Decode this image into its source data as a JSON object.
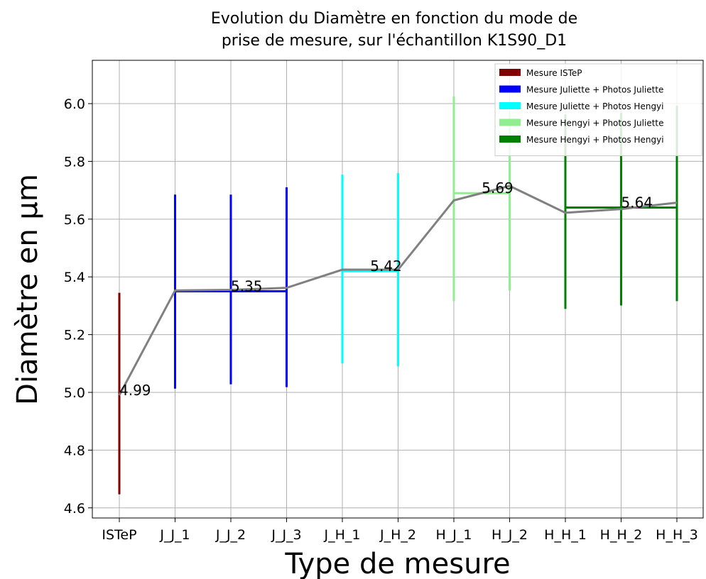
{
  "chart_data": {
    "type": "errorbar",
    "title": [
      "Evolution du Diamètre en fonction du mode de",
      "prise de mesure, sur l'échantillon K1S90_D1"
    ],
    "x_label": "Type de mesure",
    "y_label": "Diamètre en µm",
    "categories": [
      "ISTeP",
      "J_J_1",
      "J_J_2",
      "J_J_3",
      "J_H_1",
      "J_H_2",
      "H_J_1",
      "H_J_2",
      "H_H_1",
      "H_H_2",
      "H_H_3"
    ],
    "mean_line": {
      "color": "#808080",
      "values": [
        4.99,
        5.353,
        5.355,
        5.362,
        5.425,
        5.425,
        5.665,
        5.715,
        5.622,
        5.635,
        5.657
      ]
    },
    "series": [
      {
        "name": "Mesure ISTeP",
        "color": "#800000",
        "members": [
          0
        ],
        "lower": [
          4.647
        ],
        "upper": [
          5.345
        ],
        "mean": 4.99
      },
      {
        "name": "Mesure Juliette + Photos Juliette",
        "color": "#0000ff",
        "members": [
          1,
          2,
          3
        ],
        "lower": [
          5.013,
          5.028,
          5.018
        ],
        "upper": [
          5.685,
          5.685,
          5.71
        ],
        "mean": 5.35
      },
      {
        "name": "Mesure Juliette + Photos Hengyi",
        "color": "#00ffff",
        "members": [
          4,
          5
        ],
        "lower": [
          5.1,
          5.09
        ],
        "upper": [
          5.754,
          5.759
        ],
        "mean": 5.42
      },
      {
        "name": "Mesure Hengyi + Photos Juliette",
        "color": "#90ee90",
        "members": [
          6,
          7
        ],
        "lower": [
          5.316,
          5.353
        ],
        "upper": [
          6.025,
          5.968
        ],
        "mean": 5.69
      },
      {
        "name": "Mesure Hengyi + Photos Hengyi",
        "color": "#008000",
        "members": [
          8,
          9,
          10
        ],
        "lower": [
          5.289,
          5.301,
          5.316
        ],
        "upper": [
          5.963,
          5.968,
          5.993
        ],
        "mean": 5.64
      }
    ],
    "ylim": [
      4.565,
      6.15
    ],
    "yticks": [
      4.6,
      4.8,
      {
        "value": 5,
        "label": "5.0"
      },
      5.2,
      5.4,
      5.6,
      5.8,
      {
        "value": 6,
        "label": "6.0"
      }
    ],
    "grid": true,
    "legend": "upper right"
  }
}
